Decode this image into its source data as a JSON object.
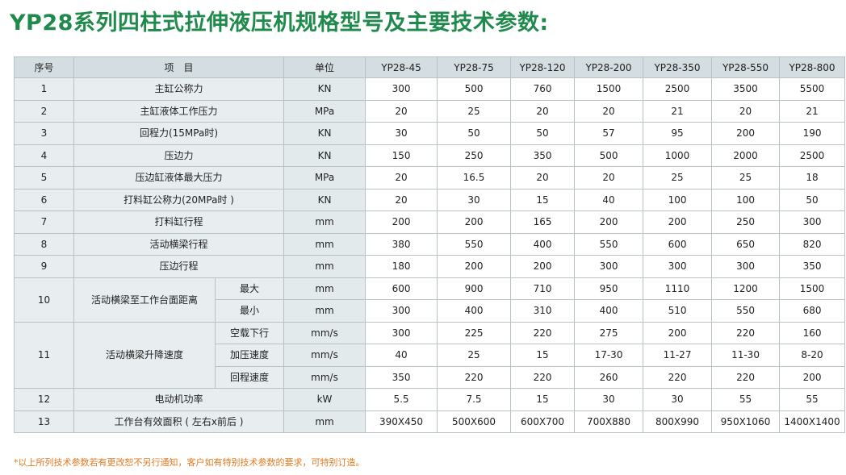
{
  "title": "YP28系列四柱式拉伸液压机规格型号及主要技术参数:",
  "header": {
    "no": "序号",
    "item": "项　目",
    "unit": "单位",
    "models": [
      "YP28-45",
      "YP28-75",
      "YP28-120",
      "YP28-200",
      "YP28-350",
      "YP28-550",
      "YP28-800"
    ]
  },
  "rows": [
    {
      "no": "1",
      "item": "主缸公称力",
      "unit": "KN",
      "values": [
        "300",
        "500",
        "760",
        "1500",
        "2500",
        "3500",
        "5500"
      ]
    },
    {
      "no": "2",
      "item": "主缸液体工作压力",
      "unit": "MPa",
      "values": [
        "20",
        "25",
        "20",
        "20",
        "21",
        "20",
        "21"
      ]
    },
    {
      "no": "3",
      "item": "回程力(15MPa时)",
      "unit": "KN",
      "values": [
        "30",
        "50",
        "50",
        "57",
        "95",
        "200",
        "190"
      ]
    },
    {
      "no": "4",
      "item": "压边力",
      "unit": "KN",
      "values": [
        "150",
        "250",
        "350",
        "500",
        "1000",
        "2000",
        "2500"
      ]
    },
    {
      "no": "5",
      "item": "压边缸液体最大压力",
      "unit": "MPa",
      "values": [
        "20",
        "16.5",
        "20",
        "20",
        "25",
        "25",
        "18"
      ]
    },
    {
      "no": "6",
      "item": "打料缸公称力(20MPa时 )",
      "unit": "KN",
      "values": [
        "20",
        "30",
        "15",
        "40",
        "100",
        "100",
        "50"
      ]
    },
    {
      "no": "7",
      "item": "打料缸行程",
      "unit": "mm",
      "values": [
        "200",
        "200",
        "165",
        "200",
        "200",
        "250",
        "300"
      ]
    },
    {
      "no": "8",
      "item": "活动横梁行程",
      "unit": "mm",
      "values": [
        "380",
        "550",
        "400",
        "550",
        "600",
        "650",
        "820"
      ]
    },
    {
      "no": "9",
      "item": "压边行程",
      "unit": "mm",
      "values": [
        "180",
        "200",
        "200",
        "300",
        "300",
        "300",
        "350"
      ]
    }
  ],
  "row10": {
    "no": "10",
    "item": "活动横梁至工作台面距离",
    "subs": [
      {
        "label": "最大",
        "unit": "mm",
        "values": [
          "600",
          "900",
          "710",
          "950",
          "1110",
          "1200",
          "1500"
        ]
      },
      {
        "label": "最小",
        "unit": "mm",
        "values": [
          "300",
          "400",
          "310",
          "400",
          "510",
          "550",
          "680"
        ]
      }
    ]
  },
  "row11": {
    "no": "11",
    "item": "活动横梁升降速度",
    "subs": [
      {
        "label": "空载下行",
        "unit": "mm/s",
        "values": [
          "300",
          "225",
          "220",
          "275",
          "200",
          "220",
          "160"
        ]
      },
      {
        "label": "加压速度",
        "unit": "mm/s",
        "values": [
          "40",
          "25",
          "15",
          "17-30",
          "11-27",
          "11-30",
          "8-20"
        ]
      },
      {
        "label": "回程速度",
        "unit": "mm/s",
        "values": [
          "350",
          "220",
          "220",
          "260",
          "220",
          "220",
          "200"
        ]
      }
    ]
  },
  "row12": {
    "no": "12",
    "item": "电动机功率",
    "unit": "kW",
    "values": [
      "5.5",
      "7.5",
      "15",
      "30",
      "30",
      "55",
      "55"
    ]
  },
  "row13": {
    "no": "13",
    "item": "工作台有效面积 ( 左右x前后 )",
    "unit": "mm",
    "values": [
      "390X450",
      "500X600",
      "600X700",
      "700X880",
      "800X990",
      "950X1060",
      "1400X1400"
    ]
  },
  "footnote": "*以上所列技术参数若有更改恕不另行通知，客户如有特别技术参数的要求，可特别订造。"
}
